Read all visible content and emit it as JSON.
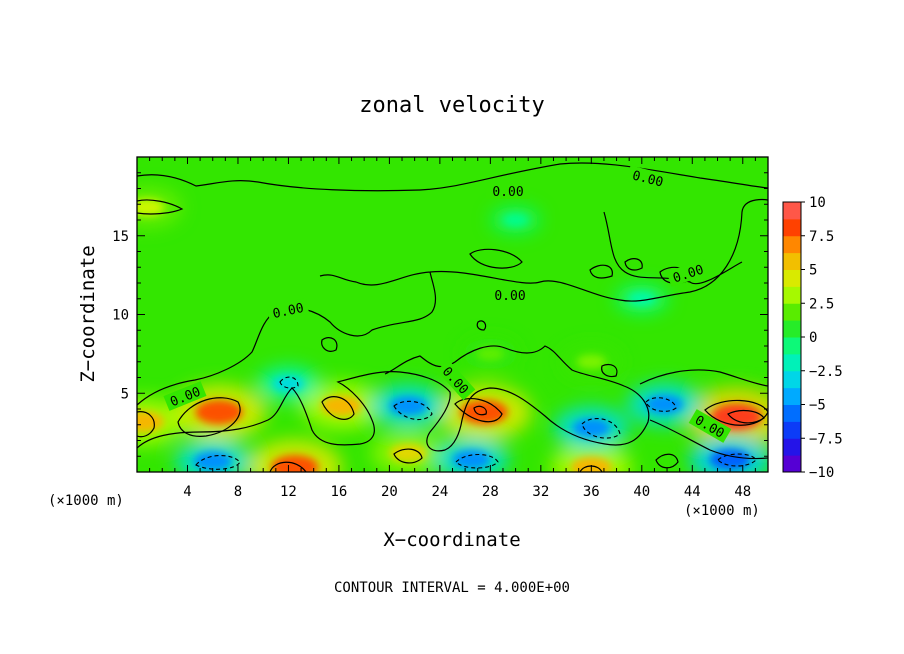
{
  "chart_data": {
    "type": "heatmap",
    "title": "zonal velocity",
    "xlabel": "X−coordinate",
    "ylabel": "Z−coordinate",
    "x_units": "(×1000 m)",
    "x_units_right": "(×1000 m)",
    "xlim": [
      0,
      50
    ],
    "ylim": [
      0,
      20
    ],
    "x_ticks": [
      4,
      8,
      12,
      16,
      20,
      24,
      28,
      32,
      36,
      40,
      44,
      48
    ],
    "x_tick_labels": [
      "4",
      "8",
      "12",
      "16",
      "20",
      "24",
      "28",
      "32",
      "36",
      "40",
      "44",
      "48"
    ],
    "y_ticks": [
      5,
      10,
      15
    ],
    "y_tick_labels": [
      "5",
      "10",
      "15"
    ],
    "colorbar": {
      "range": [
        -10,
        10
      ],
      "ticks": [
        10,
        7.5,
        5,
        2.5,
        0,
        -2.5,
        -5,
        -7.5,
        -10
      ],
      "tick_labels": [
        "10",
        "7.5",
        "5",
        "2.5",
        "0",
        "−2.5",
        "−5",
        "−7.5",
        "−10"
      ]
    },
    "contour_interval_text": "CONTOUR INTERVAL = 4.000E+00",
    "contour_labels": [
      "0.00",
      "0.00",
      "0.00",
      "0.00",
      "0.00",
      "0.00",
      "0.00",
      "0.00"
    ],
    "features": [
      {
        "x": 6.5,
        "z": 3.8,
        "value": 8
      },
      {
        "x": 16.2,
        "z": 4.2,
        "value": 6
      },
      {
        "x": 27.5,
        "z": 3.8,
        "value": 8
      },
      {
        "x": 47.5,
        "z": 3.5,
        "value": 9
      },
      {
        "x": 12.5,
        "z": 0.3,
        "value": 8
      },
      {
        "x": 0.5,
        "z": 3.2,
        "value": 6
      },
      {
        "x": 21.5,
        "z": 1.2,
        "value": 5
      },
      {
        "x": 36,
        "z": 0.3,
        "value": 6
      },
      {
        "x": 6,
        "z": 0.7,
        "value": -5
      },
      {
        "x": 21.5,
        "z": 4.2,
        "value": -5
      },
      {
        "x": 26.5,
        "z": 0.8,
        "value": -5
      },
      {
        "x": 36,
        "z": 2.8,
        "value": -5
      },
      {
        "x": 41.8,
        "z": 4.3,
        "value": -5
      },
      {
        "x": 47,
        "z": 0.8,
        "value": -6
      },
      {
        "x": 12,
        "z": 5.6,
        "value": -3
      },
      {
        "x": 30,
        "z": 16,
        "value": -1
      },
      {
        "x": 40,
        "z": 11,
        "value": -1.5
      },
      {
        "x": 0.8,
        "z": 16.8,
        "value": 4
      },
      {
        "x": 28,
        "z": 7.5,
        "value": 2
      },
      {
        "x": 36,
        "z": 7,
        "value": 2.5
      }
    ]
  }
}
